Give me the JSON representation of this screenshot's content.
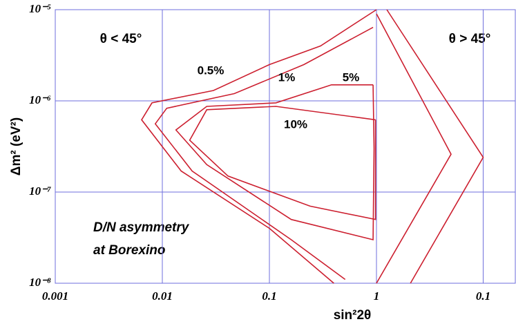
{
  "chart_data": [
    {
      "type": "contour",
      "panel": "θ < 45°",
      "xlabel": "sin²2θ",
      "ylabel": "Δm² (eV²)",
      "annotations": [
        "D/N  asymmetry",
        "at Borexino"
      ],
      "log_x": true,
      "log_y": true,
      "grid": true,
      "grid_color": "#6e6edc",
      "xlim": [
        0.001,
        1
      ],
      "xticks": [
        0.001,
        0.01,
        0.1,
        1
      ],
      "ylim": [
        1e-08,
        1e-05
      ],
      "yticks": [
        {
          "value": 1e-08,
          "label": "10⁻⁸"
        },
        {
          "value": 1e-07,
          "label": "10⁻⁷"
        },
        {
          "value": 1e-06,
          "label": "10⁻⁶"
        },
        {
          "value": 1e-05,
          "label": "10⁻⁵"
        }
      ],
      "contours": [
        {
          "label": "0.5%",
          "color": "#cc1f2f",
          "x": [
            1,
            0.3,
            0.1,
            0.03,
            0.008,
            0.0064,
            0.015,
            0.1,
            0.4
          ],
          "y": [
            1e-05,
            4e-06,
            2.5e-06,
            1.3e-06,
            9.5e-07,
            6.2e-07,
            1.7e-07,
            4e-08,
            1e-08
          ]
        },
        {
          "label": "1%",
          "color": "#cc1f2f",
          "x": [
            0.93,
            0.21,
            0.047,
            0.011,
            0.0086,
            0.019,
            0.16,
            0.51
          ],
          "y": [
            6.4e-06,
            2.5e-06,
            1.2e-06,
            8.3e-07,
            5.6e-07,
            1.7e-07,
            3e-08,
            1.1e-08
          ]
        },
        {
          "label": "5%",
          "color": "#cc1f2f",
          "x": [
            0.93,
            0.38,
            0.115,
            0.026,
            0.0134,
            0.026,
            0.16,
            0.93,
            0.95,
            0.93
          ],
          "y": [
            1.5e-06,
            1.5e-06,
            9.5e-07,
            8.7e-07,
            4.8e-07,
            2e-07,
            5e-08,
            3e-08,
            3e-07,
            1.5e-06
          ]
        },
        {
          "label": "10%",
          "color": "#cc1f2f",
          "x": [
            0.98,
            0.115,
            0.026,
            0.018,
            0.041,
            0.24,
            0.98,
            0.98
          ],
          "y": [
            6.2e-07,
            8.7e-07,
            8e-07,
            3.7e-07,
            1.5e-07,
            7e-08,
            5e-08,
            6.2e-07
          ]
        }
      ]
    },
    {
      "type": "contour",
      "panel": "θ > 45°",
      "log_x": true,
      "log_y": true,
      "grid": true,
      "grid_color": "#6e6edc",
      "xlim": [
        1,
        0.05
      ],
      "xticks": [
        0.1
      ],
      "ylim": [
        1e-08,
        1e-05
      ],
      "contours": [
        {
          "color": "#cc1f2f",
          "x": [
            1,
            0.2,
            1
          ],
          "y": [
            9e-06,
            2.6e-07,
            1e-08
          ]
        },
        {
          "color": "#cc1f2f",
          "x": [
            0.8,
            0.1,
            0.48
          ],
          "y": [
            1e-05,
            2.4e-07,
            1e-08
          ]
        }
      ]
    }
  ]
}
